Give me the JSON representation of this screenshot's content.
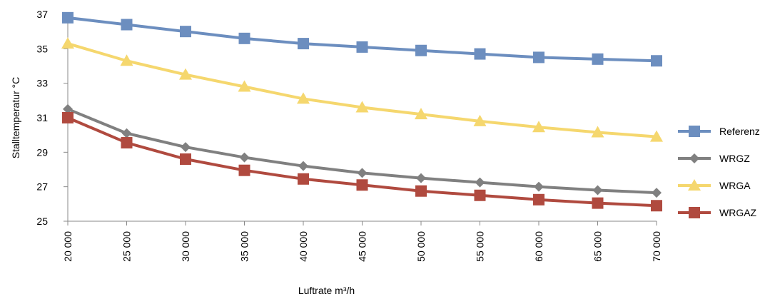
{
  "chart_data": {
    "type": "line",
    "xlabel": "Luftrate m³/h",
    "ylabel": "Stalltemperatur °C",
    "x": [
      20000,
      25000,
      30000,
      35000,
      40000,
      45000,
      50000,
      55000,
      60000,
      65000,
      70000
    ],
    "x_tick_labels": [
      "20 000",
      "25 000",
      "30 000",
      "35 000",
      "40 000",
      "45 000",
      "50 000",
      "55 000",
      "60 000",
      "65 000",
      "70 000"
    ],
    "ylim": [
      25,
      37
    ],
    "y_ticks": [
      25,
      27,
      29,
      31,
      33,
      35,
      37
    ],
    "grid": false,
    "legend_position": "right",
    "series": [
      {
        "name": "Referenz",
        "color": "#6C8EBF",
        "marker": "square",
        "values": [
          36.8,
          36.4,
          36.0,
          35.6,
          35.3,
          35.1,
          34.9,
          34.7,
          34.5,
          34.4,
          34.3
        ]
      },
      {
        "name": "WRGZ",
        "color": "#808080",
        "marker": "diamond",
        "values": [
          31.5,
          30.1,
          29.3,
          28.7,
          28.2,
          27.8,
          27.5,
          27.25,
          27.0,
          26.8,
          26.65
        ]
      },
      {
        "name": "WRGA",
        "color": "#F5D76E",
        "marker": "triangle",
        "values": [
          35.3,
          34.3,
          33.5,
          32.8,
          32.1,
          31.6,
          31.2,
          30.8,
          30.45,
          30.15,
          29.9
        ]
      },
      {
        "name": "WRGAZ",
        "color": "#B04A3F",
        "marker": "square",
        "values": [
          31.0,
          29.55,
          28.6,
          27.95,
          27.45,
          27.1,
          26.75,
          26.5,
          26.25,
          26.05,
          25.9
        ]
      }
    ]
  }
}
